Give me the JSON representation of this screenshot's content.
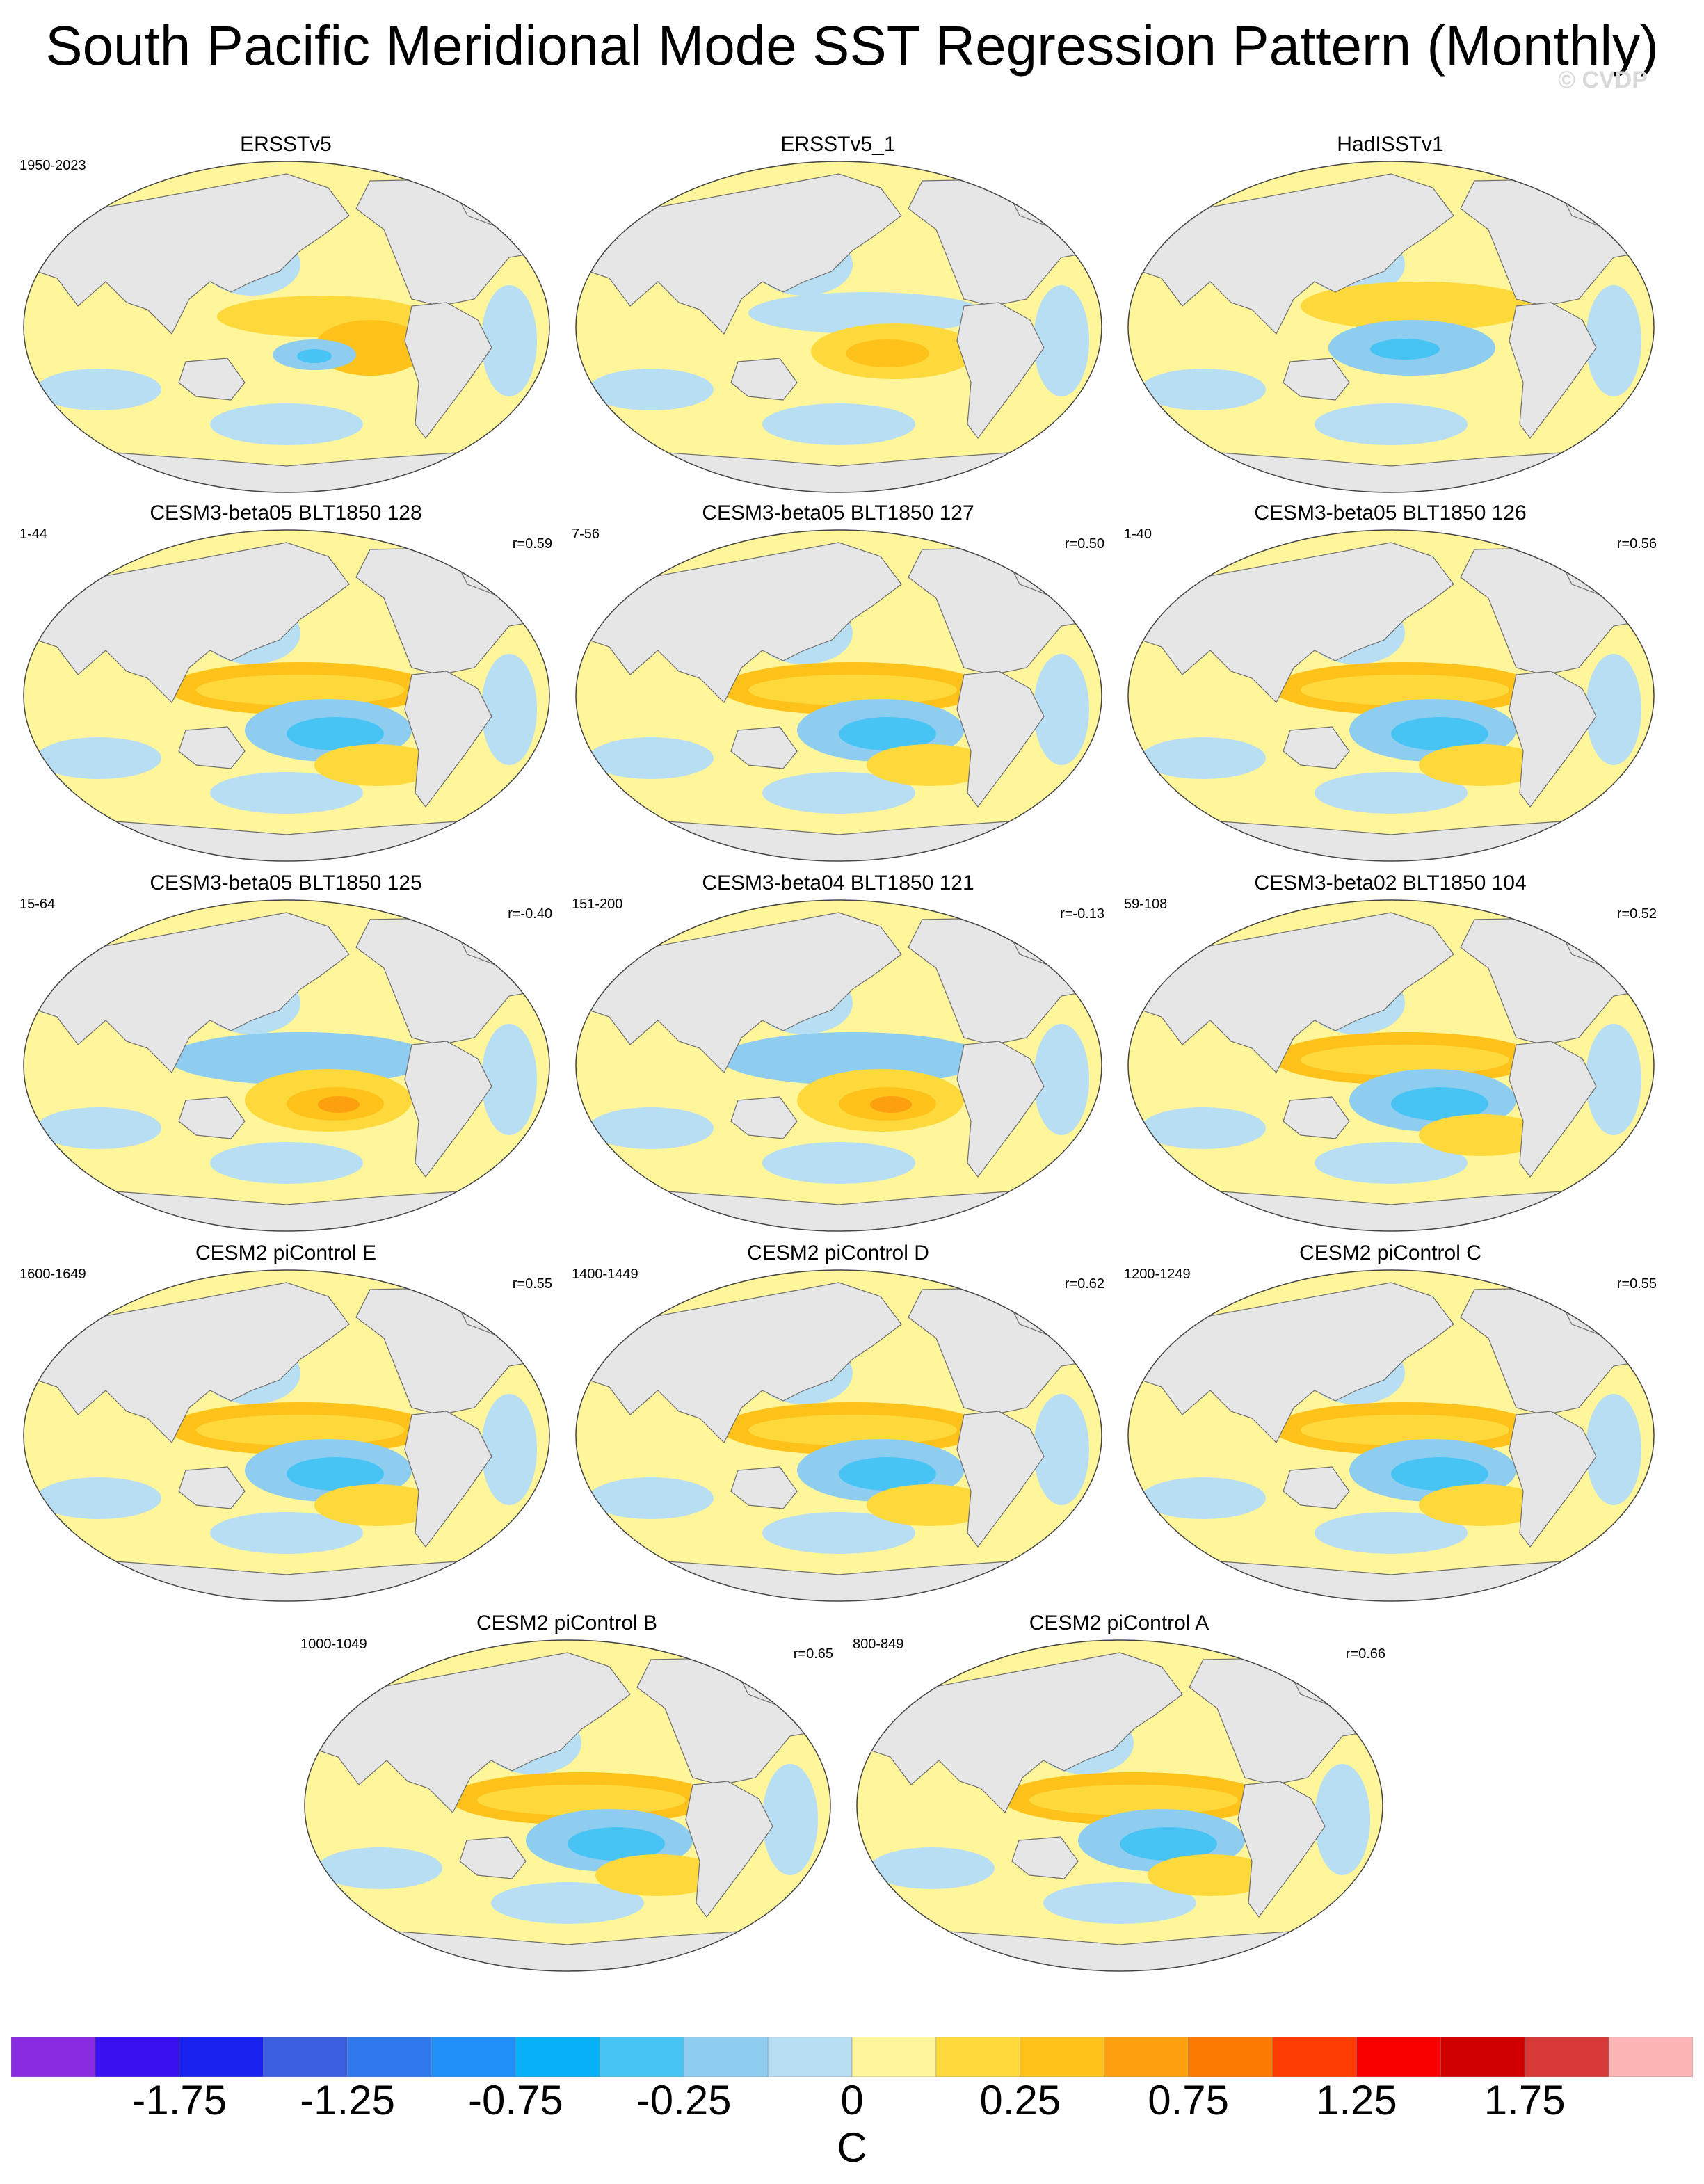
{
  "title": "South Pacific Meridional Mode SST Regression Pattern (Monthly)",
  "watermark": "© CVDP",
  "panels": [
    {
      "title": "ERSSTv5",
      "years": "1950-2023",
      "corr": "",
      "pattern": "obs_a"
    },
    {
      "title": "ERSSTv5_1",
      "years": "",
      "corr": "",
      "pattern": "obs_b"
    },
    {
      "title": "HadISSTv1",
      "years": "",
      "corr": "",
      "pattern": "obs_c"
    },
    {
      "title": "CESM3-beta05 BLT1850 128",
      "years": "1-44",
      "corr": "r=0.59",
      "pattern": "cold"
    },
    {
      "title": "CESM3-beta05 BLT1850 127",
      "years": "7-56",
      "corr": "r=0.50",
      "pattern": "cold"
    },
    {
      "title": "CESM3-beta05 BLT1850 126",
      "years": "1-40",
      "corr": "r=0.56",
      "pattern": "cold"
    },
    {
      "title": "CESM3-beta05 BLT1850 125",
      "years": "15-64",
      "corr": "r=-0.40",
      "pattern": "warm"
    },
    {
      "title": "CESM3-beta04 BLT1850 121",
      "years": "151-200",
      "corr": "r=-0.13",
      "pattern": "warm"
    },
    {
      "title": "CESM3-beta02 BLT1850 104",
      "years": "59-108",
      "corr": "r=0.52",
      "pattern": "cold"
    },
    {
      "title": "CESM2 piControl E",
      "years": "1600-1649",
      "corr": "r=0.55",
      "pattern": "cold"
    },
    {
      "title": "CESM2 piControl D",
      "years": "1400-1449",
      "corr": "r=0.62",
      "pattern": "cold"
    },
    {
      "title": "CESM2 piControl C",
      "years": "1200-1249",
      "corr": "r=0.55",
      "pattern": "cold"
    },
    {
      "title": "CESM2 piControl B",
      "years": "1000-1049",
      "corr": "r=0.65",
      "pattern": "cold"
    },
    {
      "title": "CESM2 piControl A",
      "years": "800-849",
      "corr": "r=0.66",
      "pattern": "cold"
    }
  ],
  "colorbar": {
    "unit": "C",
    "colors": [
      "#8a2be2",
      "#3a10f0",
      "#1a22f0",
      "#3c5fe0",
      "#2f78ec",
      "#2090f8",
      "#08b0f8",
      "#48c4f4",
      "#8ecdef",
      "#b8def3",
      "#fff59a",
      "#fed93c",
      "#fec21a",
      "#fca010",
      "#fc7a00",
      "#fc3c00",
      "#f80000",
      "#d00000",
      "#d83a3a",
      "#fcb4b4"
    ],
    "tick_labels": [
      "-1.75",
      "-1.25",
      "-0.75",
      "-0.25",
      "0",
      "0.25",
      "0.75",
      "1.25",
      "1.75"
    ]
  },
  "colors": {
    "land": "#e6e6e6",
    "coast": "#6e6e6e",
    "light_blue": "#b8def3",
    "blue": "#8ecdef",
    "deep_blue": "#48c4f4",
    "light_yellow": "#fff59a",
    "yellow": "#fed93c",
    "orange": "#fec21a",
    "deep_orange": "#fca010"
  }
}
